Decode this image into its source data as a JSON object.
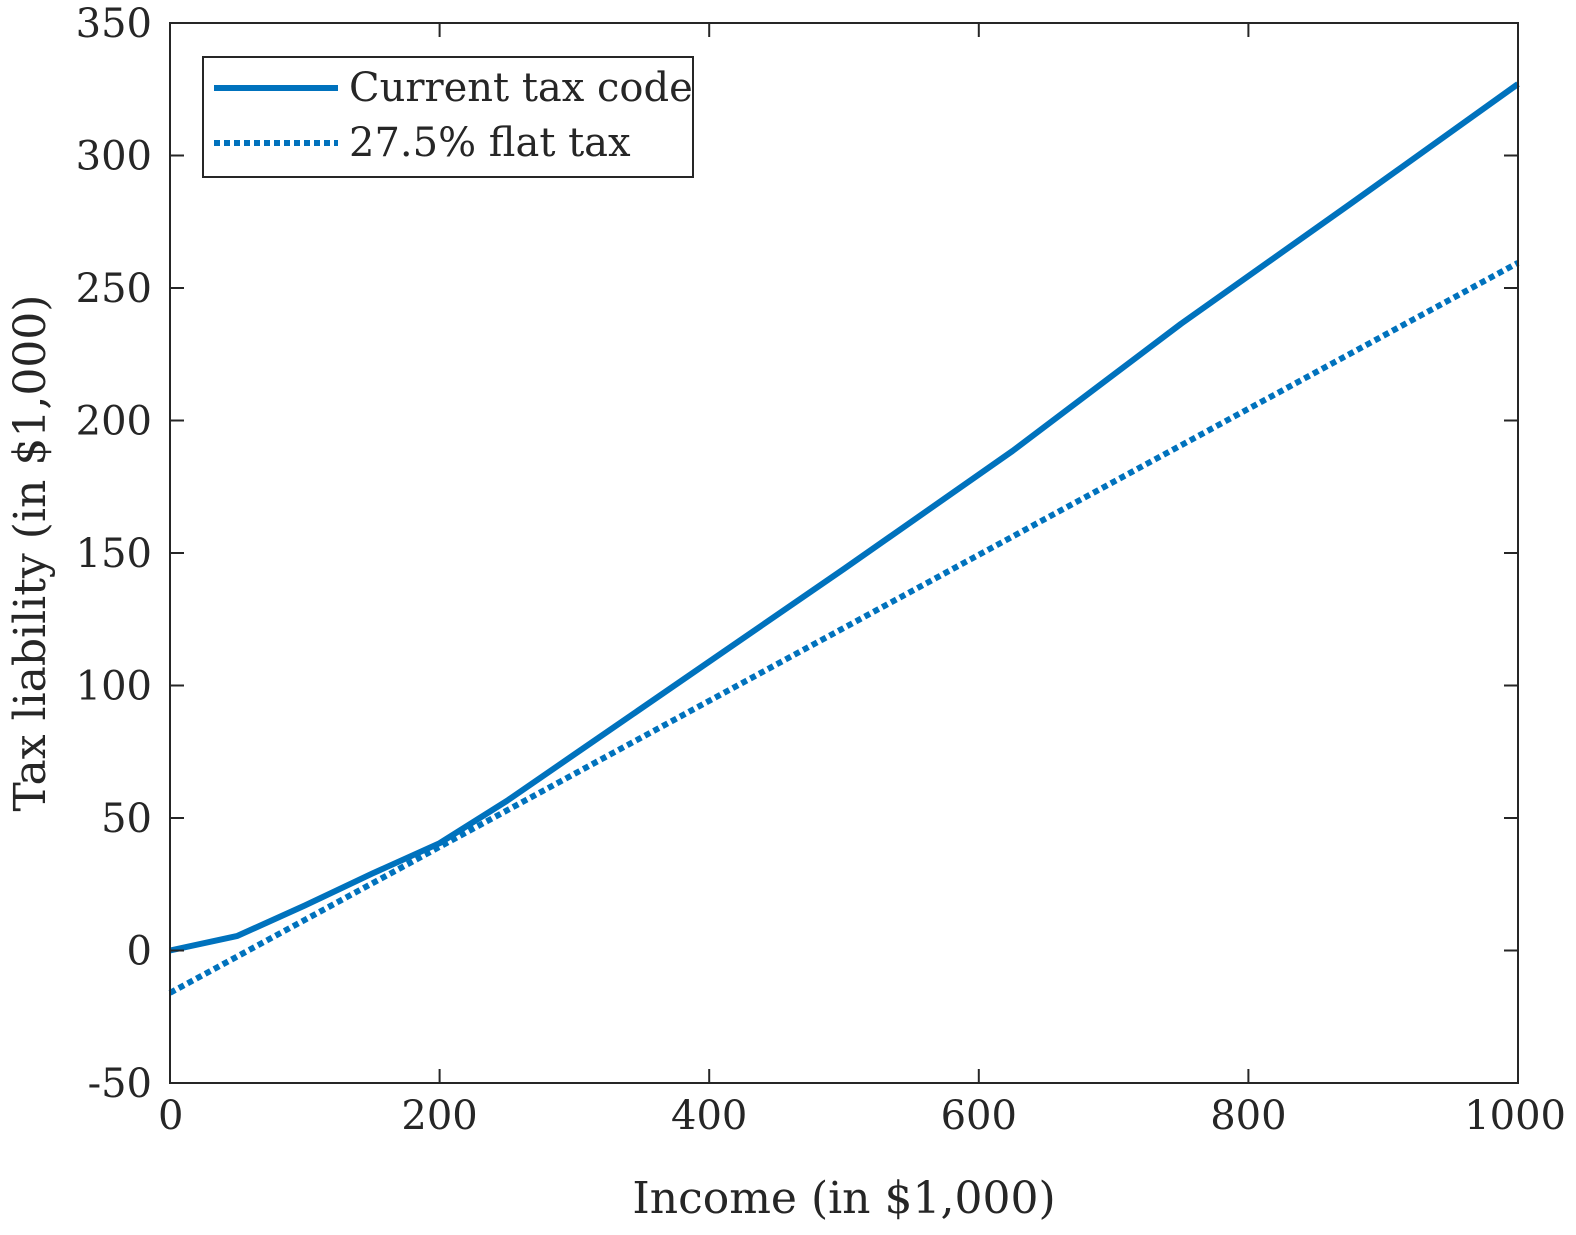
{
  "chart_data": {
    "type": "line",
    "title": "",
    "xlabel": "Income (in $1,000)",
    "ylabel": "Tax liability (in $1,000)",
    "xlim": [
      0,
      1000
    ],
    "ylim": [
      -50,
      350
    ],
    "xticks": [
      0,
      200,
      400,
      600,
      800,
      1000
    ],
    "yticks": [
      -50,
      0,
      50,
      100,
      150,
      200,
      250,
      300,
      350
    ],
    "xtick_labels": [
      "0",
      "200",
      "400",
      "600",
      "800",
      "1000"
    ],
    "ytick_labels": [
      "-50",
      "0",
      "50",
      "100",
      "150",
      "200",
      "250",
      "300",
      "350"
    ],
    "grid": false,
    "legend_position": "top-left",
    "series": [
      {
        "name": "Current tax code",
        "style": "solid",
        "color": "#0072BD",
        "x": [
          0,
          50,
          100,
          150,
          200,
          250,
          300,
          400,
          500,
          625,
          750,
          875,
          1000
        ],
        "y": [
          0,
          5.5,
          17,
          29,
          40.5,
          56.5,
          74,
          109,
          144,
          188.5,
          236.5,
          281.5,
          327
        ]
      },
      {
        "name": "27.5% flat tax",
        "style": "dotted",
        "color": "#0072BD",
        "x": [
          0,
          1000
        ],
        "y": [
          -16,
          259.5
        ]
      }
    ]
  }
}
